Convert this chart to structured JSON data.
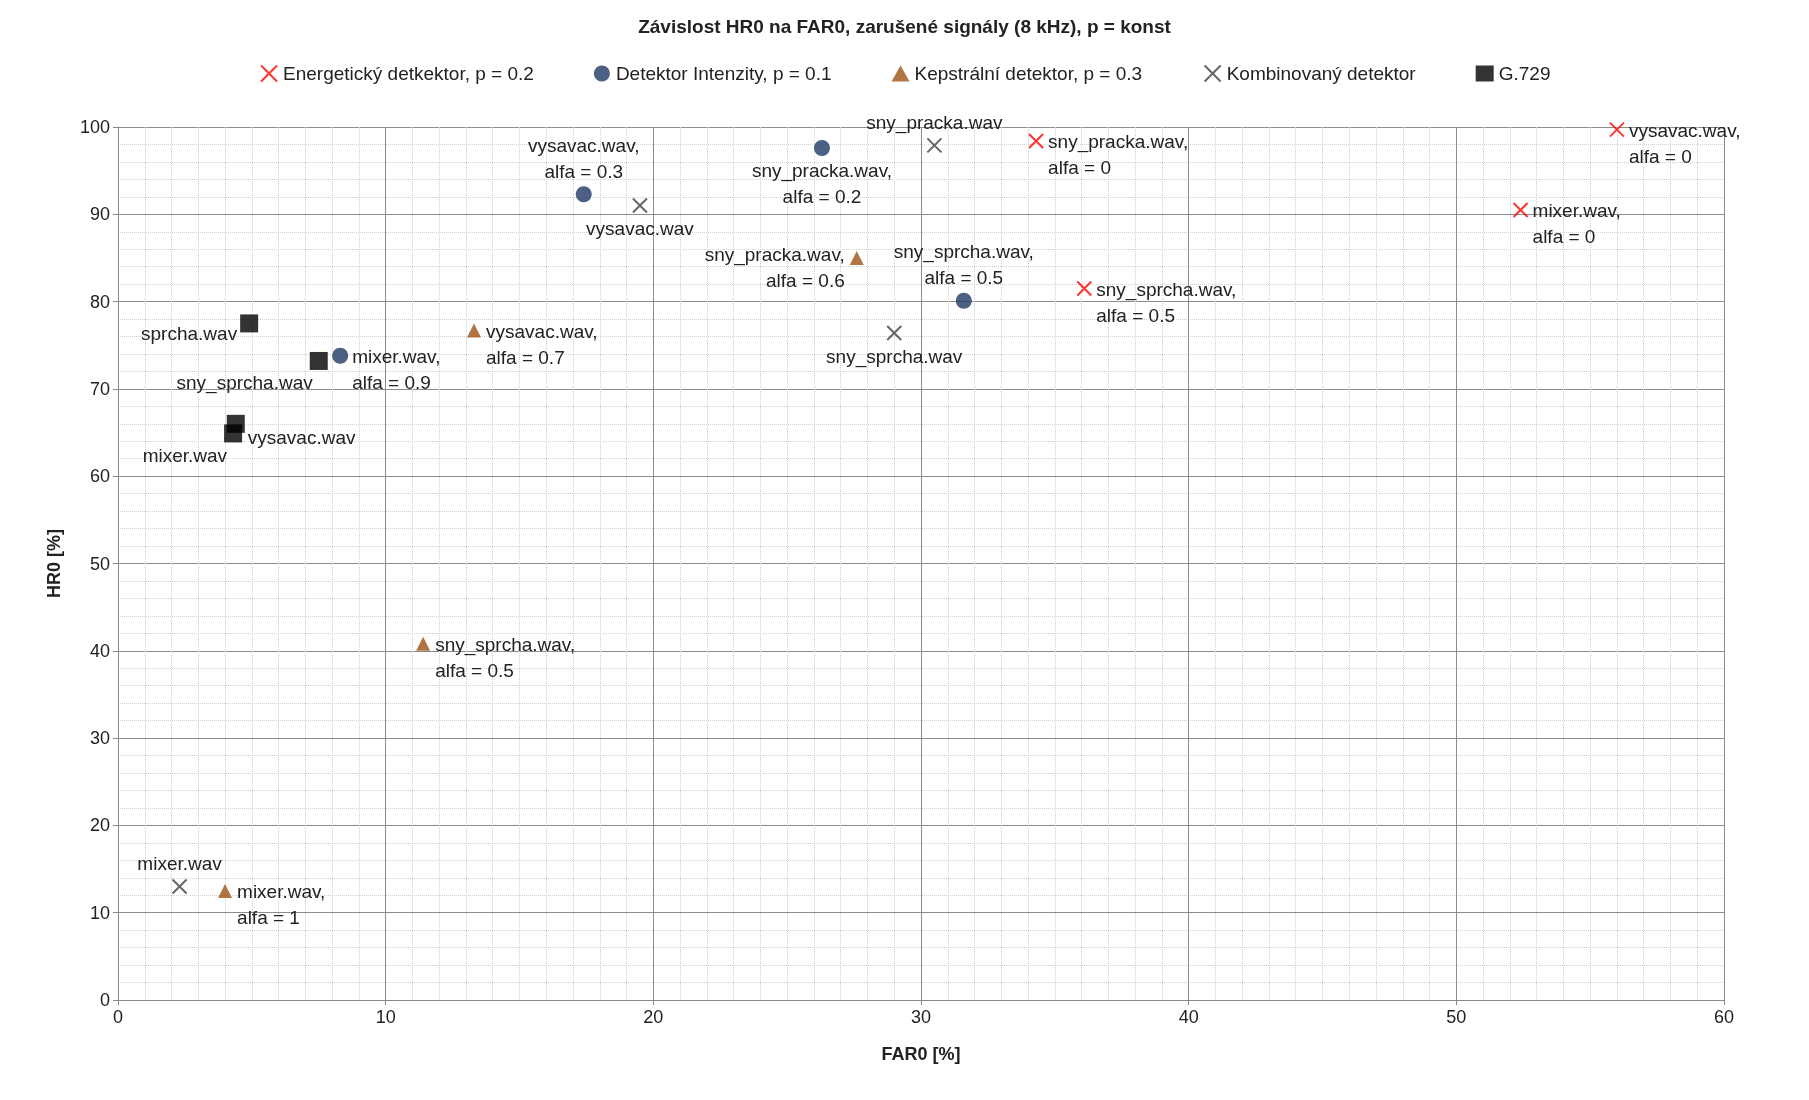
{
  "chart_data": {
    "type": "scatter",
    "title": "Závislost HR0 na FAR0, zarušené signály (8 kHz), p = konst",
    "xlabel": "FAR0 [%]",
    "ylabel": "HR0 [%]",
    "series": [
      {
        "name": "Energetický detkektor, p = 0.2",
        "color": "#ff0000",
        "marker": "cross",
        "x": [
          34.3,
          56.0,
          52.4,
          36.1
        ],
        "values": [
          98.4,
          99.7,
          90.5,
          81.5
        ]
      },
      {
        "name": "Detektor Intenzity, p = 0.1",
        "color": "#1f3864",
        "marker": "circle",
        "x": [
          26.3,
          17.4,
          31.6,
          8.3
        ],
        "values": [
          97.6,
          92.3,
          80.1,
          73.8
        ]
      },
      {
        "name": "Kepstrální detektor, p = 0.3",
        "color": "#9c5214",
        "marker": "triangle",
        "x": [
          27.6,
          13.3,
          11.4,
          4.0
        ],
        "values": [
          85.0,
          76.7,
          40.8,
          12.5
        ]
      },
      {
        "name": "Kombinovaný detektor",
        "color": "#404040",
        "marker": "cross",
        "x": [
          30.5,
          19.5,
          29.0,
          2.3
        ],
        "values": [
          97.9,
          91.0,
          76.4,
          13.0
        ]
      },
      {
        "name": "G.729",
        "color": "#000000",
        "marker": "square",
        "x": [
          4.9,
          7.5,
          4.4,
          4.3
        ],
        "values": [
          77.5,
          73.2,
          66.0,
          64.9
        ]
      }
    ],
    "annotations": [
      {
        "text": "sny_pracka.wav,\nalfa = 0",
        "x": 34.3,
        "y": 98.4
      },
      {
        "text": "vysavac.wav,\nalfa = 0",
        "x": 56.0,
        "y": 99.7
      },
      {
        "text": "mixer.wav,\nalfa = 0",
        "x": 52.4,
        "y": 90.5
      },
      {
        "text": "sny_sprcha.wav,\nalfa = 0.5",
        "x": 36.1,
        "y": 81.5
      },
      {
        "text": "sny_pracka.wav,\nalfa = 0.2",
        "x": 26.3,
        "y": 97.6
      },
      {
        "text": "vysavac.wav,\nalfa = 0.3",
        "x": 17.4,
        "y": 92.3
      },
      {
        "text": "sny_sprcha.wav,\nalfa = 0.5",
        "x": 31.6,
        "y": 80.1
      },
      {
        "text": "mixer.wav,\nalfa = 0.9",
        "x": 8.3,
        "y": 73.8
      },
      {
        "text": "sny_pracka.wav,\nalfa = 0.6",
        "x": 27.6,
        "y": 85.0
      },
      {
        "text": "vysavac.wav,\nalfa = 0.7",
        "x": 13.3,
        "y": 76.7
      },
      {
        "text": "sny_sprcha.wav,\nalfa = 0.5",
        "x": 11.4,
        "y": 40.8
      },
      {
        "text": "mixer.wav,\nalfa = 1",
        "x": 4.0,
        "y": 12.5
      },
      {
        "text": "sny_pracka.wav",
        "x": 30.5,
        "y": 97.9
      },
      {
        "text": "vysavac.wav",
        "x": 19.5,
        "y": 91.0
      },
      {
        "text": "sny_sprcha.wav",
        "x": 29.0,
        "y": 76.4
      },
      {
        "text": "mixer.wav",
        "x": 2.3,
        "y": 13.0
      },
      {
        "text": "sprcha.wav",
        "x": 4.9,
        "y": 77.5
      },
      {
        "text": "sny_sprcha.wav",
        "x": 7.5,
        "y": 73.2
      },
      {
        "text": "vysavac.wav",
        "x": 4.4,
        "y": 66.0
      },
      {
        "text": "mixer.wav",
        "x": 4.3,
        "y": 64.9
      }
    ],
    "xlim": [
      0,
      60
    ],
    "xticks": [
      0,
      10,
      20,
      30,
      40,
      50,
      60
    ],
    "ylim": [
      0,
      100
    ],
    "yticks": [
      0,
      10,
      20,
      30,
      40,
      50,
      60,
      70,
      80,
      90,
      100
    ],
    "grid": true,
    "legend": "top"
  }
}
